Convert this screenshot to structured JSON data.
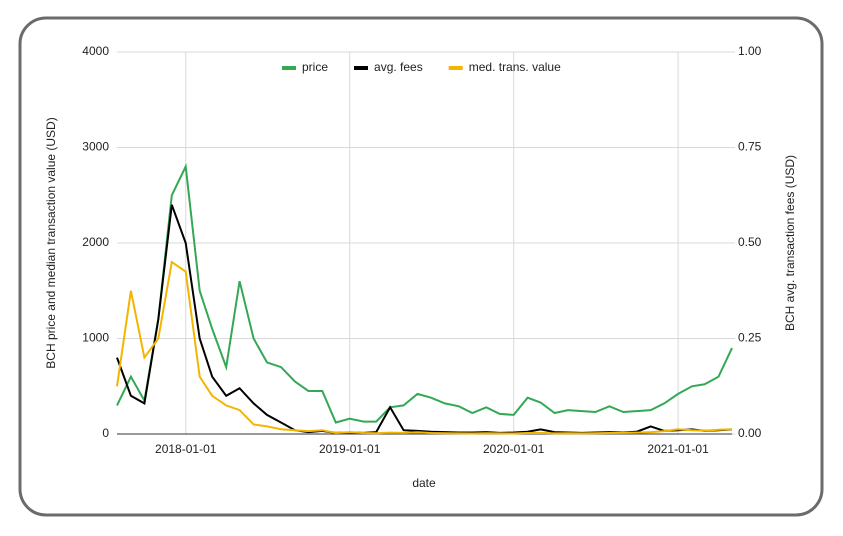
{
  "chart_data": {
    "type": "line",
    "x_label": "date",
    "y_label": "BCH price and median transaction value (USD)",
    "y2_label": "BCH avg. transaction fees (USD)",
    "x": [
      "2017-08-01",
      "2017-09-01",
      "2017-10-01",
      "2017-11-01",
      "2017-12-01",
      "2018-01-01",
      "2018-02-01",
      "2018-03-01",
      "2018-04-01",
      "2018-05-01",
      "2018-06-01",
      "2018-07-01",
      "2018-08-01",
      "2018-09-01",
      "2018-10-01",
      "2018-11-01",
      "2018-12-01",
      "2019-01-01",
      "2019-02-01",
      "2019-03-01",
      "2019-04-01",
      "2019-05-01",
      "2019-06-01",
      "2019-07-01",
      "2019-08-01",
      "2019-09-01",
      "2019-10-01",
      "2019-11-01",
      "2019-12-01",
      "2020-01-01",
      "2020-02-01",
      "2020-03-01",
      "2020-04-01",
      "2020-05-01",
      "2020-06-01",
      "2020-07-01",
      "2020-08-01",
      "2020-09-01",
      "2020-10-01",
      "2020-11-01",
      "2020-12-01",
      "2021-01-01",
      "2021-02-01",
      "2021-03-01",
      "2021-04-01",
      "2021-05-01"
    ],
    "series": [
      {
        "name": "price",
        "color": "#34a853",
        "axis": "y",
        "values": [
          300,
          600,
          350,
          1200,
          2500,
          2800,
          1500,
          1100,
          700,
          1600,
          1000,
          750,
          700,
          550,
          450,
          450,
          120,
          160,
          130,
          130,
          280,
          300,
          420,
          380,
          320,
          290,
          220,
          280,
          210,
          200,
          380,
          330,
          220,
          250,
          240,
          230,
          290,
          230,
          240,
          250,
          320,
          420,
          500,
          520,
          600,
          900
        ]
      },
      {
        "name": "avg. fees",
        "color": "#000000",
        "axis": "y2",
        "values": [
          0.2,
          0.1,
          0.08,
          0.3,
          0.6,
          0.5,
          0.25,
          0.15,
          0.1,
          0.12,
          0.08,
          0.05,
          0.03,
          0.01,
          0.005,
          0.008,
          0.003,
          0.004,
          0.003,
          0.005,
          0.07,
          0.01,
          0.008,
          0.006,
          0.005,
          0.004,
          0.004,
          0.005,
          0.003,
          0.004,
          0.006,
          0.012,
          0.005,
          0.004,
          0.003,
          0.004,
          0.005,
          0.004,
          0.006,
          0.02,
          0.008,
          0.01,
          0.012,
          0.008,
          0.01,
          0.012
        ]
      },
      {
        "name": "med. trans. value",
        "color": "#f4b400",
        "axis": "y",
        "values": [
          500,
          1500,
          800,
          1000,
          1800,
          1700,
          600,
          400,
          300,
          250,
          100,
          80,
          50,
          40,
          30,
          40,
          10,
          20,
          10,
          8,
          15,
          12,
          18,
          10,
          8,
          6,
          5,
          8,
          6,
          5,
          10,
          12,
          6,
          8,
          6,
          8,
          10,
          12,
          15,
          20,
          30,
          50,
          40,
          35,
          45,
          50
        ]
      }
    ],
    "xlim": [
      "2017-08-01",
      "2021-05-01"
    ],
    "xticks": [
      "2018-01-01",
      "2019-01-01",
      "2020-01-01",
      "2021-01-01"
    ],
    "ylim": [
      0,
      4000
    ],
    "yticks": [
      0,
      1000,
      2000,
      3000,
      4000
    ],
    "y2lim": [
      0,
      1
    ],
    "y2ticks": [
      {
        "value": 0,
        "label": "0.00"
      },
      {
        "value": 0.25,
        "label": "0.25"
      },
      {
        "value": 0.5,
        "label": "0.50"
      },
      {
        "value": 0.75,
        "label": "0.75"
      },
      {
        "value": 1,
        "label": "1.00"
      }
    ],
    "grid": true,
    "legend": "top"
  }
}
